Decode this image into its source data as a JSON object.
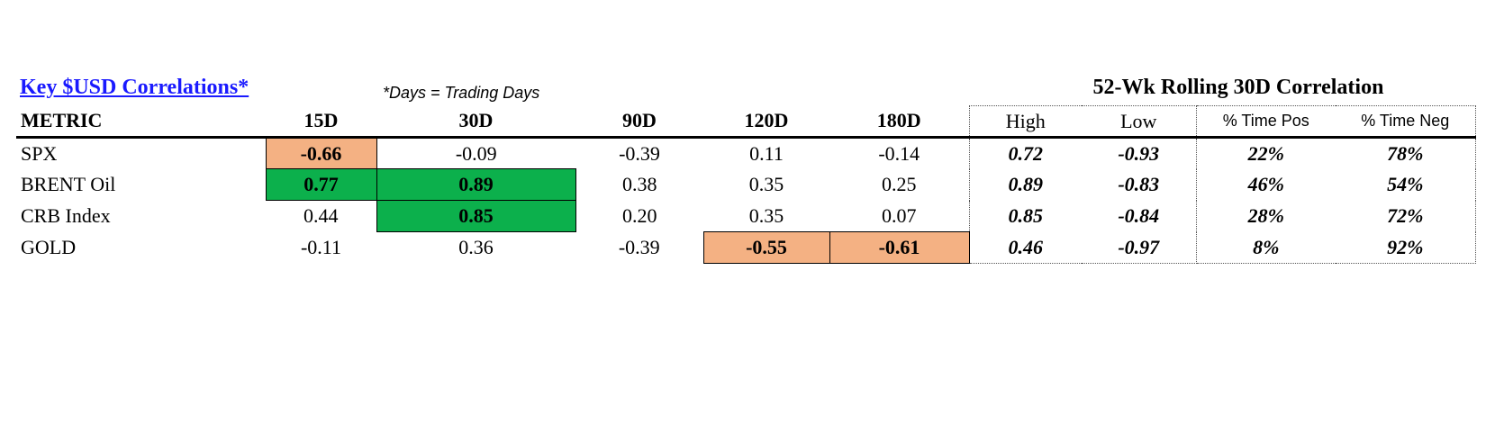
{
  "title": "Key $USD Correlations*",
  "note": "*Days = Trading Days",
  "rolling_title": "52-Wk Rolling 30D Correlation",
  "columns": [
    "METRIC",
    "15D",
    "30D",
    "90D",
    "120D",
    "180D",
    "High",
    "Low",
    "% Time Pos",
    "% Time Neg"
  ],
  "rows": [
    {
      "metric": "SPX",
      "d15": "-0.66",
      "d30": "-0.09",
      "d90": "-0.39",
      "d120": "0.11",
      "d180": "-0.14",
      "high": "0.72",
      "low": "-0.93",
      "pos": "22%",
      "neg": "78%"
    },
    {
      "metric": "BRENT Oil",
      "d15": "0.77",
      "d30": "0.89",
      "d90": "0.38",
      "d120": "0.35",
      "d180": "0.25",
      "high": "0.89",
      "low": "-0.83",
      "pos": "46%",
      "neg": "54%"
    },
    {
      "metric": "CRB Index",
      "d15": "0.44",
      "d30": "0.85",
      "d90": "0.20",
      "d120": "0.35",
      "d180": "0.07",
      "high": "0.85",
      "low": "-0.84",
      "pos": "28%",
      "neg": "72%"
    },
    {
      "metric": "GOLD",
      "d15": "-0.11",
      "d30": "0.36",
      "d90": "-0.39",
      "d120": "-0.55",
      "d180": "-0.61",
      "high": "0.46",
      "low": "-0.97",
      "pos": "8%",
      "neg": "92%"
    }
  ],
  "colors": {
    "highlight_negative": "#f4b183",
    "highlight_positive": "#0cb04c",
    "title_link": "#1a1aff"
  }
}
